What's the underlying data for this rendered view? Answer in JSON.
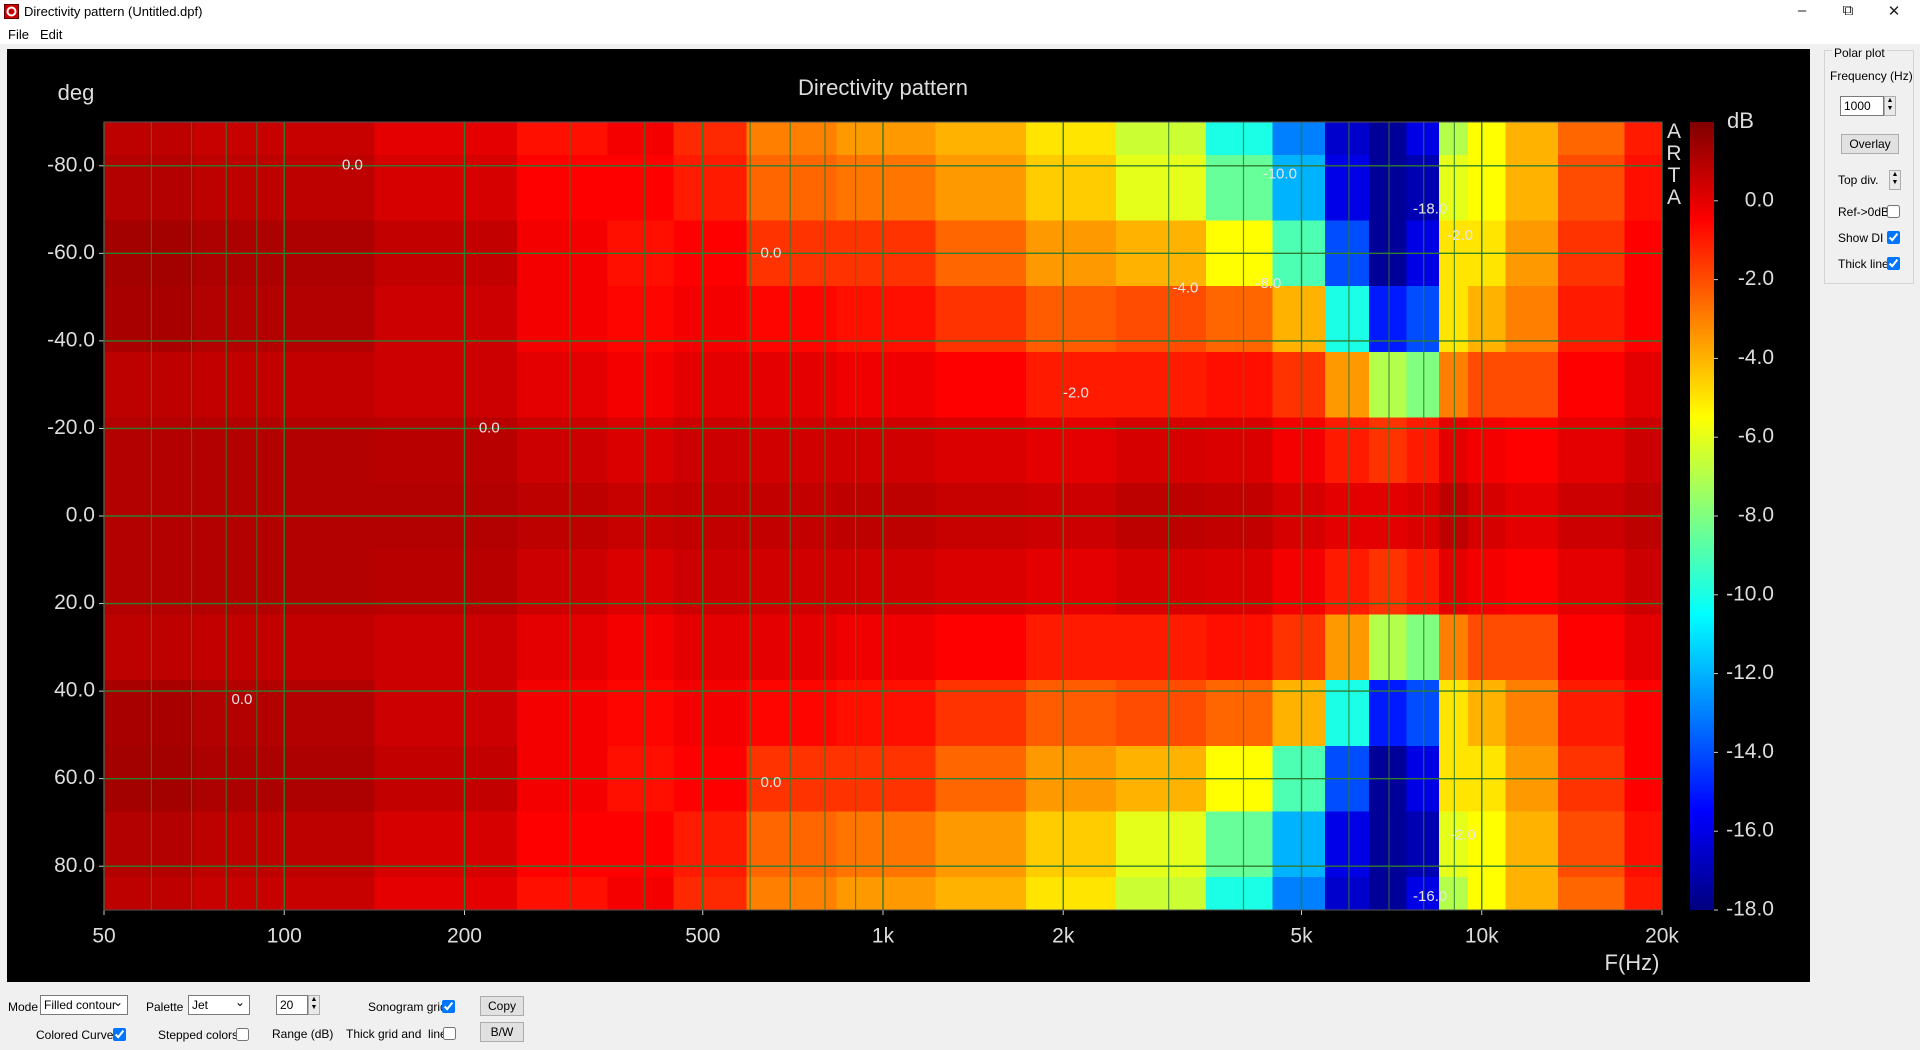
{
  "window": {
    "title": "Directivity pattern (Untitled.dpf)",
    "menu": [
      "File",
      "Edit"
    ]
  },
  "chart_data": {
    "type": "heatmap",
    "title": "Directivity pattern",
    "x_label": "F(Hz)",
    "y_label": "deg",
    "colorbar_label": "dB",
    "watermark": "ARTA",
    "x": [
      50,
      100,
      200,
      300,
      400,
      500,
      700,
      1000,
      1500,
      2000,
      3000,
      4000,
      5000,
      6000,
      7000,
      8000,
      9000,
      10000,
      12000,
      15000,
      20000
    ],
    "y": [
      -90,
      -75,
      -60,
      -45,
      -30,
      -15,
      0,
      15,
      30,
      45,
      60,
      75,
      90
    ],
    "z": [
      [
        0.8,
        0.6,
        0.0,
        -0.8,
        -0.3,
        -1.3,
        -3.0,
        -3.5,
        -4.0,
        -5.0,
        -6.5,
        -10.0,
        -13.0,
        -16.5,
        -17.5,
        -16.0,
        -7.0,
        -5.5,
        -4.0,
        -2.5,
        -1.0
      ],
      [
        1.0,
        0.8,
        0.3,
        -0.5,
        -0.5,
        -1.0,
        -2.5,
        -2.8,
        -3.5,
        -4.5,
        -6.0,
        -8.5,
        -12.0,
        -16.0,
        -17.5,
        -17.0,
        -6.0,
        -5.5,
        -4.0,
        -2.0,
        -0.8
      ],
      [
        1.3,
        1.1,
        0.7,
        -0.3,
        -0.8,
        -0.5,
        -1.5,
        -1.5,
        -2.5,
        -3.5,
        -4.0,
        -5.5,
        -9.0,
        -14.0,
        -17.5,
        -16.0,
        -5.0,
        -5.0,
        -3.5,
        -1.5,
        -0.5
      ],
      [
        1.2,
        1.0,
        0.5,
        -0.3,
        -0.6,
        -0.3,
        -0.6,
        -0.8,
        -1.5,
        -2.3,
        -2.0,
        -2.5,
        -4.0,
        -10.0,
        -15.0,
        -14.0,
        -5.0,
        -4.0,
        -3.0,
        -1.0,
        -0.5
      ],
      [
        0.8,
        0.7,
        0.5,
        0.0,
        -0.3,
        0.0,
        0.0,
        -0.2,
        -0.5,
        -1.0,
        -1.0,
        -0.8,
        -1.5,
        -3.5,
        -7.0,
        -8.0,
        -3.0,
        -2.0,
        -2.0,
        -0.5,
        0.0
      ],
      [
        1.0,
        1.0,
        0.9,
        0.5,
        0.2,
        0.5,
        0.4,
        0.4,
        0.2,
        0.0,
        0.3,
        0.2,
        -0.3,
        -1.0,
        -1.5,
        -1.0,
        0.0,
        -0.3,
        -0.5,
        0.0,
        0.5
      ],
      [
        1.0,
        1.0,
        1.0,
        0.8,
        0.6,
        0.7,
        0.7,
        0.8,
        0.6,
        0.5,
        0.8,
        0.7,
        0.3,
        0.0,
        0.0,
        0.2,
        0.8,
        0.3,
        0.0,
        0.5,
        0.8
      ],
      [
        1.0,
        1.0,
        0.9,
        0.5,
        0.2,
        0.5,
        0.4,
        0.4,
        0.2,
        0.0,
        0.3,
        0.2,
        -0.3,
        -1.0,
        -1.5,
        -1.0,
        0.0,
        -0.3,
        -0.5,
        0.0,
        0.5
      ],
      [
        0.8,
        0.7,
        0.5,
        0.0,
        -0.3,
        0.0,
        0.0,
        -0.2,
        -0.5,
        -1.0,
        -1.0,
        -0.8,
        -1.5,
        -3.5,
        -7.0,
        -8.0,
        -3.0,
        -2.0,
        -2.0,
        -0.5,
        0.0
      ],
      [
        1.2,
        1.0,
        0.5,
        -0.3,
        -0.6,
        -0.3,
        -0.6,
        -0.8,
        -1.5,
        -2.3,
        -2.0,
        -2.5,
        -4.0,
        -10.0,
        -15.0,
        -14.0,
        -5.0,
        -4.0,
        -3.0,
        -1.0,
        -0.5
      ],
      [
        1.3,
        1.1,
        0.7,
        -0.3,
        -0.8,
        -0.5,
        -1.5,
        -1.5,
        -2.5,
        -3.5,
        -4.0,
        -5.5,
        -9.0,
        -14.0,
        -17.5,
        -16.0,
        -5.0,
        -5.0,
        -3.5,
        -1.5,
        -0.5
      ],
      [
        1.0,
        0.8,
        0.3,
        -0.5,
        -0.5,
        -1.0,
        -2.5,
        -2.8,
        -3.5,
        -4.5,
        -6.0,
        -8.5,
        -12.0,
        -16.0,
        -17.5,
        -17.0,
        -6.0,
        -5.5,
        -4.0,
        -2.0,
        -0.8
      ],
      [
        0.8,
        0.6,
        0.0,
        -0.8,
        -0.3,
        -1.3,
        -3.0,
        -3.5,
        -4.0,
        -5.0,
        -6.5,
        -10.0,
        -13.0,
        -16.5,
        -17.5,
        -16.0,
        -7.0,
        -5.5,
        -4.0,
        -2.5,
        -1.0
      ]
    ],
    "xlim": [
      50,
      20000
    ],
    "xscale": "log",
    "xticks": [
      50,
      100,
      200,
      500,
      {
        "value": 1000,
        "label": "1k"
      },
      {
        "value": 2000,
        "label": "2k"
      },
      {
        "value": 5000,
        "label": "5k"
      },
      {
        "value": 10000,
        "label": "10k"
      },
      {
        "value": 20000,
        "label": "20k"
      }
    ],
    "xgrid_minor": [
      60,
      70,
      80,
      90,
      300,
      400,
      600,
      700,
      800,
      900,
      3000,
      4000,
      6000,
      7000,
      8000,
      9000
    ],
    "ylim": [
      -90,
      90
    ],
    "y_inverted": true,
    "yticks": [
      {
        "value": -80,
        "label": "-80.0"
      },
      {
        "value": -60,
        "label": "-60.0"
      },
      {
        "value": -40,
        "label": "-40.0"
      },
      {
        "value": -20,
        "label": "-20.0"
      },
      {
        "value": 0,
        "label": "0.0"
      },
      {
        "value": 20,
        "label": "20.0"
      },
      {
        "value": 40,
        "label": "40.0"
      },
      {
        "value": 60,
        "label": "60.0"
      },
      {
        "value": 80,
        "label": "80.0"
      }
    ],
    "zlim": [
      -18,
      2
    ],
    "zticks": [
      {
        "value": 0,
        "label": "0.0"
      },
      {
        "value": -2,
        "label": "-2.0"
      },
      {
        "value": -4,
        "label": "-4.0"
      },
      {
        "value": -6,
        "label": "-6.0"
      },
      {
        "value": -8,
        "label": "-8.0"
      },
      {
        "value": -10,
        "label": "-10.0"
      },
      {
        "value": -12,
        "label": "-12.0"
      },
      {
        "value": -14,
        "label": "-14.0"
      },
      {
        "value": -16,
        "label": "-16.0"
      },
      {
        "value": -18,
        "label": "-18.0"
      }
    ],
    "palette": "Jet",
    "grid": true,
    "annotations": [
      {
        "text": "0.0",
        "x": 130,
        "y": -80
      },
      {
        "text": "0.0",
        "x": 650,
        "y": -60
      },
      {
        "text": "0.0",
        "x": 220,
        "y": -20
      },
      {
        "text": "0.0",
        "x": 85,
        "y": 42
      },
      {
        "text": "0.0",
        "x": 650,
        "y": 61
      },
      {
        "text": "-2.0",
        "x": 2100,
        "y": -28
      },
      {
        "text": "-4.0",
        "x": 3200,
        "y": -52
      },
      {
        "text": "-8.0",
        "x": 4400,
        "y": -53
      },
      {
        "text": "-10.0",
        "x": 4600,
        "y": -78
      },
      {
        "text": "-18.0",
        "x": 8200,
        "y": -70
      },
      {
        "text": "-2.0",
        "x": 9200,
        "y": -64
      },
      {
        "text": "-2.0",
        "x": 9300,
        "y": 73
      },
      {
        "text": "-16.0",
        "x": 8200,
        "y": 87
      }
    ]
  },
  "polar_panel": {
    "title": "Polar plot",
    "frequency_label": "Frequency (Hz)",
    "frequency": 1000,
    "overlay": "Overlay",
    "top_div": "Top div.",
    "checks": [
      {
        "label": "Ref->0dB",
        "checked": false
      },
      {
        "label": "Show DI",
        "checked": true
      },
      {
        "label": "Thick line",
        "checked": true
      }
    ]
  },
  "controls": {
    "mode_label": "Mode",
    "mode": "Filled contour",
    "palette_label": "Palette",
    "palette": "Jet",
    "range": 20,
    "range_label": "Range (dB)",
    "sonogram_grid": {
      "label": "Sonogram grid",
      "checked": true
    },
    "colored_curves": {
      "label": "Colored Curves",
      "checked": true
    },
    "stepped_colors": {
      "label": "Stepped colors",
      "checked": false
    },
    "thick_grid": {
      "label": "Thick grid and  lines",
      "checked": false
    },
    "copy": "Copy",
    "bw": "B/W"
  }
}
